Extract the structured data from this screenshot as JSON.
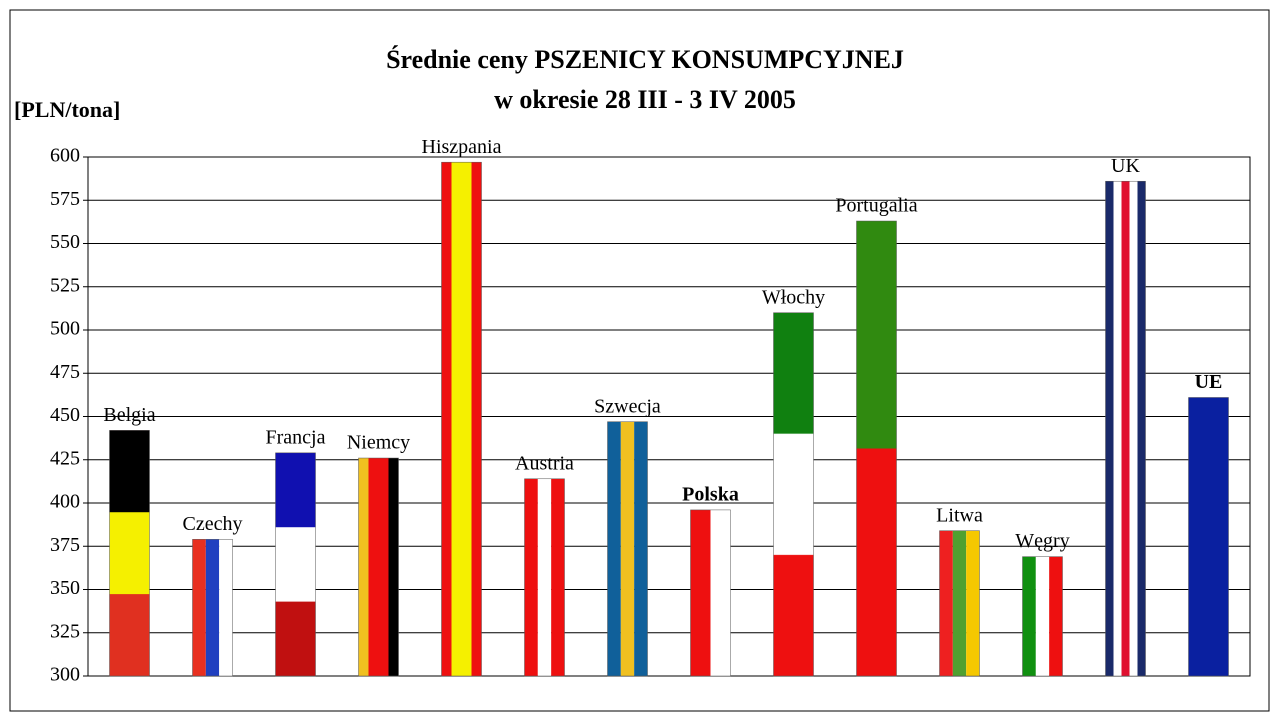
{
  "chart_data": {
    "type": "bar",
    "title": "Średnie ceny PSZENICY KONSUMPCYJNEJ",
    "subtitle": "w okresie 28 III - 3 IV 2005",
    "y_label": "[PLN/tona]",
    "categories": [
      "Belgia",
      "Czechy",
      "Francja",
      "Niemcy",
      "Hiszpania",
      "Austria",
      "Szwecja",
      "Polska",
      "Włochy",
      "Portugalia",
      "Litwa",
      "Węgry",
      "UK",
      "UE"
    ],
    "values": [
      442,
      379,
      429,
      426,
      597,
      414,
      447,
      396,
      510,
      563,
      384,
      369,
      586,
      461
    ],
    "flag_direction": [
      "h",
      "v",
      "h",
      "v",
      "v",
      "v",
      "v",
      "v",
      "h",
      "h",
      "v",
      "v",
      "v",
      "v"
    ],
    "flag_colors": [
      [
        "#000000",
        "#f5f000",
        "#e03020"
      ],
      [
        "#e83020",
        "#2040c0",
        "#ffffff"
      ],
      [
        "#1010b0",
        "#ffffff",
        "#c01010"
      ],
      [
        "#f0c020",
        "#ee1010",
        "#ee1010",
        "#000000"
      ],
      [
        "#ee1010",
        "#f5f000",
        "#f5f000",
        "#ee1010"
      ],
      [
        "#ee1010",
        "#ffffff",
        "#ee1010"
      ],
      [
        "#10609a",
        "#f0c020",
        "#10609a"
      ],
      [
        "#ee1010",
        "#ffffff"
      ],
      [
        "#108010",
        "#ffffff",
        "#ee1010"
      ],
      [
        "#308a10",
        "#ee1010"
      ],
      [
        "#ee2020",
        "#50a030",
        "#f5c800"
      ],
      [
        "#109010",
        "#ffffff",
        "#ee1010"
      ],
      [
        "#1a2a6a",
        "#ffffff",
        "#e01030",
        "#ffffff",
        "#1a2a6a"
      ],
      [
        "#0a20a0"
      ]
    ],
    "ylim": [
      300,
      600
    ],
    "yticks": [
      300,
      325,
      350,
      375,
      400,
      425,
      450,
      475,
      500,
      525,
      550,
      575,
      600
    ],
    "grid": true
  }
}
